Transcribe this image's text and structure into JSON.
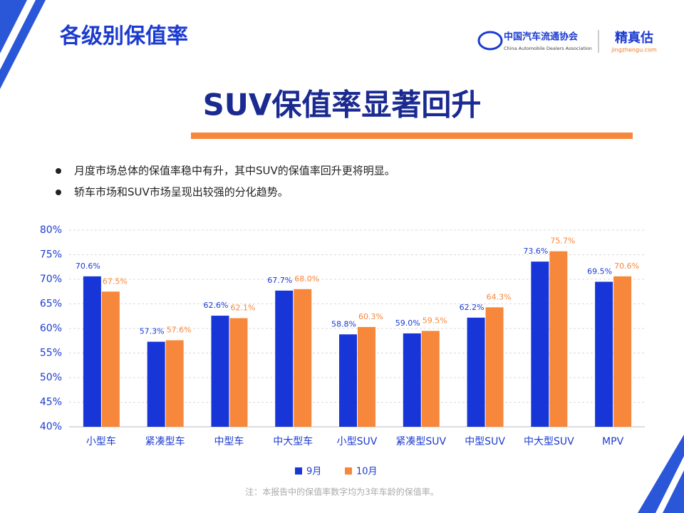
{
  "header": {
    "title": "各级别保值率",
    "org_cn": "中国汽车流通协会",
    "org_en": "China Automobile Dealers Association",
    "brand": "精真估",
    "brand_url": "jingzhengu.com"
  },
  "headline": "SUV保值率显著回升",
  "bullets": [
    "月度市场总体的保值率稳中有升，其中SUV的保值率回升更将明显。",
    "轿车市场和SUV市场呈现出较强的分化趋势。"
  ],
  "note": "注：本报告中的保值率数字均为3年车龄的保值率。",
  "chart_data": {
    "type": "bar",
    "categories": [
      "小型车",
      "紧凑型车",
      "中型车",
      "中大型车",
      "小型SUV",
      "紧凑型SUV",
      "中型SUV",
      "中大型SUV",
      "MPV"
    ],
    "series": [
      {
        "name": "9月",
        "color": "#1836d8",
        "values": [
          70.6,
          57.3,
          62.6,
          67.7,
          58.8,
          59.0,
          62.2,
          73.6,
          69.5
        ],
        "value_labels": [
          "70.6%",
          "57.3%",
          "62.6%",
          "67.7%",
          "58.8%",
          "59.0%",
          "62.2%",
          "73.6%",
          "69.5%"
        ]
      },
      {
        "name": "10月",
        "color": "#f7873b",
        "values": [
          67.5,
          57.6,
          62.1,
          68.0,
          60.3,
          59.5,
          64.3,
          75.7,
          70.6
        ],
        "value_labels": [
          "67.5%",
          "57.6%",
          "62.1%",
          "68.0%",
          "60.3%",
          "59.5%",
          "64.3%",
          "75.7%",
          "70.6%"
        ]
      }
    ],
    "ylim": [
      40,
      80
    ],
    "yticks": [
      {
        "value": 40,
        "label": "40%"
      },
      {
        "value": 45,
        "label": "45%"
      },
      {
        "value": 50,
        "label": "50%"
      },
      {
        "value": 55,
        "label": "55%"
      },
      {
        "value": 60,
        "label": "60%"
      },
      {
        "value": 65,
        "label": "65%"
      },
      {
        "value": 70,
        "label": "70%"
      },
      {
        "value": 75,
        "label": "75%"
      },
      {
        "value": 80,
        "label": "80%"
      }
    ],
    "grid": true,
    "legend": "bottom"
  }
}
